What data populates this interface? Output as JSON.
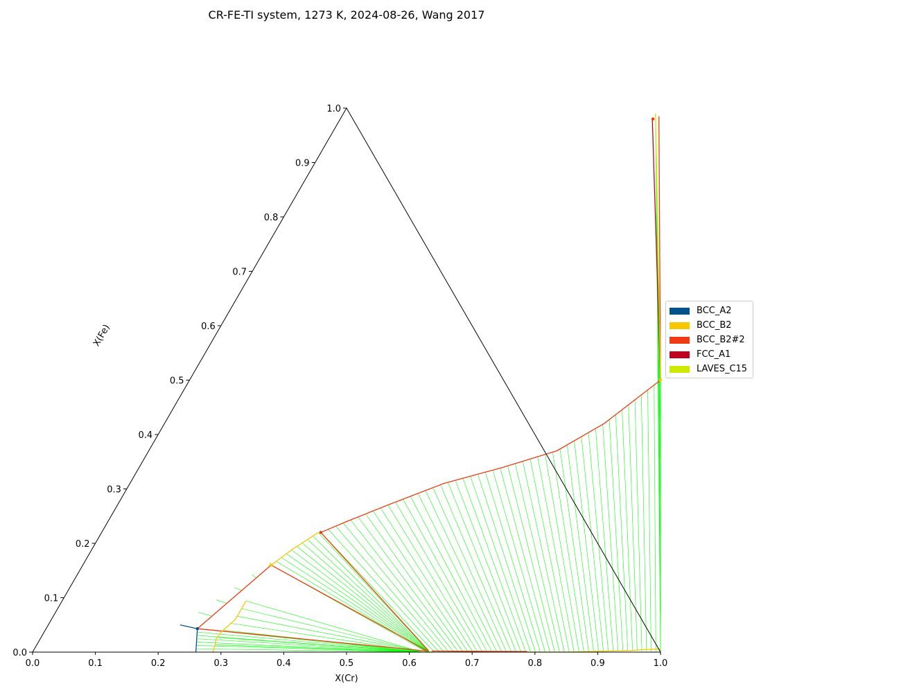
{
  "title": "CR-FE-TI system, 1273 K, 2024-08-26, Wang 2017",
  "chart_data": {
    "type": "ternary",
    "xlabel": "X(Cr)",
    "ylabel": "X(Fe)",
    "xlim": [
      0,
      1
    ],
    "ylim": [
      0,
      1
    ],
    "x_ticks": [
      "0.0",
      "0.1",
      "0.2",
      "0.3",
      "0.4",
      "0.5",
      "0.6",
      "0.7",
      "0.8",
      "0.9",
      "1.0"
    ],
    "y_ticks": [
      "0.0",
      "0.1",
      "0.2",
      "0.3",
      "0.4",
      "0.5",
      "0.6",
      "0.7",
      "0.8",
      "0.9",
      "1.0"
    ],
    "legend_position": "right",
    "legend": [
      {
        "label": "BCC_A2",
        "color": "#00538a"
      },
      {
        "label": "BCC_B2",
        "color": "#f6c800"
      },
      {
        "label": "BCC_B2#2",
        "color": "#f13a13"
      },
      {
        "label": "FCC_A1",
        "color": "#c10020"
      },
      {
        "label": "LAVES_C15",
        "color": "#cee900"
      }
    ],
    "tieline_color": "#00ff00",
    "phase_boundaries": [
      {
        "phase": "BCC_B2#2",
        "points": [
          [
            0.787,
            0.001
          ],
          [
            0.7,
            0.0015
          ],
          [
            0.635,
            0.002
          ]
        ]
      },
      {
        "phase": "BCC_B2#2",
        "points": [
          [
            0.505,
            0.985
          ],
          [
            0.75,
            0.5
          ]
        ]
      },
      {
        "phase": "BCC_B2#2",
        "points": [
          [
            0.75,
            0.5
          ],
          [
            0.7,
            0.42
          ],
          [
            0.65,
            0.37
          ],
          [
            0.58,
            0.34
          ],
          [
            0.5,
            0.31
          ],
          [
            0.43,
            0.27
          ],
          [
            0.38,
            0.24
          ],
          [
            0.349,
            0.22
          ]
        ]
      },
      {
        "phase": "BCC_B2#2",
        "points": [
          [
            0.349,
            0.22
          ],
          [
            0.63,
            0.002
          ]
        ]
      },
      {
        "phase": "BCC_B2#2",
        "points": [
          [
            0.3,
            0.16
          ],
          [
            0.628,
            0.002
          ]
        ]
      },
      {
        "phase": "BCC_B2#2",
        "points": [
          [
            0.3,
            0.16
          ],
          [
            0.241,
            0.043
          ]
        ]
      },
      {
        "phase": "BCC_B2#2",
        "points": [
          [
            0.241,
            0.043
          ],
          [
            0.625,
            0.002
          ]
        ]
      },
      {
        "phase": "BCC_B2",
        "points": [
          [
            0.787,
            0.0
          ],
          [
            0.85,
            0.0
          ],
          [
            0.95,
            0.003
          ],
          [
            0.995,
            0.006
          ],
          [
            1.0,
            0.0
          ]
        ]
      },
      {
        "phase": "BCC_B2",
        "points": [
          [
            0.345,
            0.22
          ],
          [
            0.32,
            0.19
          ],
          [
            0.3,
            0.16
          ],
          [
            0.296,
            0.16
          ]
        ]
      },
      {
        "phase": "BCC_B2",
        "points": [
          [
            0.293,
            0.094
          ],
          [
            0.293,
            0.06
          ],
          [
            0.283,
            0.04
          ],
          [
            0.28,
            0.025
          ],
          [
            0.285,
            0.01
          ],
          [
            0.287,
            0.0
          ]
        ]
      },
      {
        "phase": "BCC_B2",
        "points": [
          [
            0.625,
            0.0
          ],
          [
            0.64,
            0.0
          ]
        ]
      },
      {
        "phase": "BCC_A2",
        "points": [
          [
            0.21,
            0.05
          ],
          [
            0.241,
            0.043
          ],
          [
            0.26,
            0.0
          ]
        ]
      },
      {
        "phase": "FCC_A1",
        "points": [
          [
            0.497,
            0.98
          ],
          [
            0.75,
            0.5
          ]
        ]
      },
      {
        "phase": "LAVES_C15",
        "points": [
          [
            0.497,
            0.99
          ],
          [
            0.75,
            0.5
          ]
        ]
      }
    ],
    "markers": [
      {
        "phase": "BCC_B2#2",
        "x": 0.349,
        "y": 0.22
      },
      {
        "phase": "BCC_B2#2",
        "x": 0.498,
        "y": 0.98
      },
      {
        "phase": "BCC_B2",
        "x": 0.3,
        "y": 0.16
      },
      {
        "phase": "BCC_B2",
        "x": 0.75,
        "y": 0.5
      },
      {
        "phase": "BCC_A2",
        "x": 0.241,
        "y": 0.043
      }
    ],
    "tieline_fans": [
      {
        "from_curve": [
          [
            0.349,
            0.22
          ],
          [
            0.38,
            0.24
          ],
          [
            0.43,
            0.27
          ],
          [
            0.5,
            0.31
          ],
          [
            0.58,
            0.34
          ],
          [
            0.65,
            0.37
          ],
          [
            0.7,
            0.42
          ],
          [
            0.75,
            0.5
          ]
        ],
        "to_curve": [
          [
            0.64,
            0.0
          ],
          [
            0.78,
            0.0
          ],
          [
            0.85,
            0.0
          ],
          [
            0.95,
            0.003
          ],
          [
            1.0,
            0.0
          ]
        ],
        "count": 48
      },
      {
        "from_curve": [
          [
            0.3,
            0.16
          ],
          [
            0.32,
            0.19
          ],
          [
            0.345,
            0.22
          ]
        ],
        "to_curve": [
          [
            0.628,
            0.0
          ],
          [
            0.632,
            0.0
          ]
        ],
        "count": 10
      },
      {
        "from_curve": [
          [
            0.241,
            0.043
          ],
          [
            0.3,
            0.16
          ]
        ],
        "to_curve": [
          [
            0.21,
            0.05
          ],
          [
            0.296,
            0.165
          ]
        ],
        "count": 6
      },
      {
        "from_curve": [
          [
            0.293,
            0.094
          ],
          [
            0.293,
            0.06
          ],
          [
            0.283,
            0.04
          ],
          [
            0.28,
            0.025
          ],
          [
            0.285,
            0.01
          ],
          [
            0.287,
            0.0
          ]
        ],
        "to_curve": [
          [
            0.62,
            0.0
          ],
          [
            0.625,
            0.0
          ]
        ],
        "count": 8
      },
      {
        "from_curve": [
          [
            0.241,
            0.043
          ],
          [
            0.26,
            0.0
          ]
        ],
        "to_curve": [
          [
            0.62,
            0.0
          ],
          [
            0.624,
            0.0
          ]
        ],
        "count": 8
      },
      {
        "from_curve": [
          [
            0.497,
            0.99
          ],
          [
            0.75,
            0.5
          ]
        ],
        "to_curve": [
          [
            1.0,
            0.0
          ],
          [
            0.75,
            0.5
          ]
        ],
        "count": 8
      }
    ]
  }
}
